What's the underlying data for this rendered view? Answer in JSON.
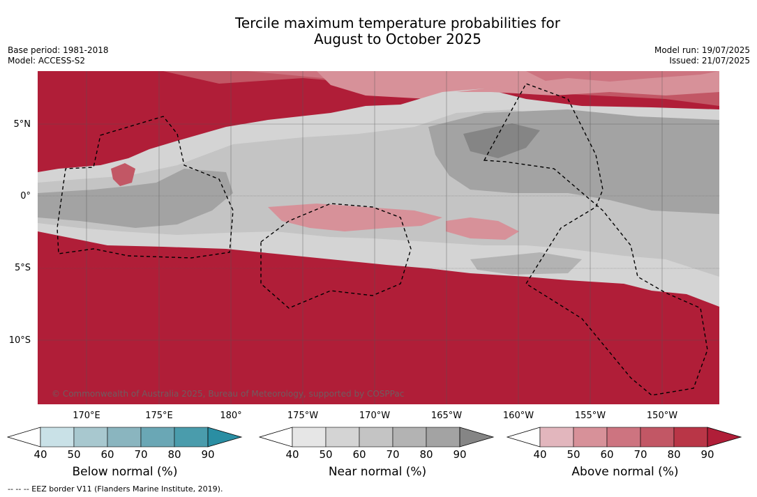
{
  "title_line1": "Tercile maximum temperature probabilities for",
  "title_line2": "August to October 2025",
  "base_period": "Base period: 1981-2018",
  "model": "Model: ACCESS-S2",
  "model_run": "Model run: 19/07/2025",
  "issued": "Issued: 21/07/2025",
  "copyright": "© Commonwealth of Australia 2025, Bureau of Meteorology, supported by COSPPac",
  "lat_labels": [
    "5°N",
    "0°",
    "5°S",
    "10°S"
  ],
  "lon_labels": [
    "170°E",
    "175°E",
    "180°",
    "175°W",
    "170°W",
    "165°W",
    "160°W",
    "155°W",
    "150°W"
  ],
  "colorbars": [
    {
      "label": "Below normal (%)",
      "ticks": [
        "40",
        "50",
        "60",
        "70",
        "80",
        "90"
      ],
      "colors": [
        "#ffffff",
        "#c9e1e7",
        "#a8c8cf",
        "#8ab5bf",
        "#6aa7b5",
        "#4a9cac",
        "#2a8ea3"
      ]
    },
    {
      "label": "Near normal (%)",
      "ticks": [
        "40",
        "50",
        "60",
        "70",
        "80",
        "90"
      ],
      "colors": [
        "#ffffff",
        "#e6e6e6",
        "#d4d4d4",
        "#c4c4c4",
        "#b3b3b3",
        "#a3a3a3",
        "#858585"
      ]
    },
    {
      "label": "Above normal (%)",
      "ticks": [
        "40",
        "50",
        "60",
        "70",
        "80",
        "90"
      ],
      "colors": [
        "#ffffff",
        "#e2b6bd",
        "#d79199",
        "#cd7480",
        "#c25765",
        "#b93647",
        "#b01e38"
      ]
    }
  ],
  "footnote": "-- -- -- EEZ border V11 (Flanders Marine Institute, 2019)."
}
